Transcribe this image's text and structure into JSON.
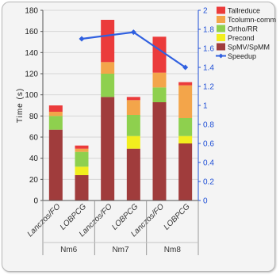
{
  "chart_data": {
    "type": "bar",
    "stacked": true,
    "groups": [
      "Nm6",
      "Nm7",
      "Nm8"
    ],
    "categories": [
      "Lanczos/FO",
      "LOBPCG",
      "Lanczos/FO",
      "LOBPCG",
      "Lanczos/FO",
      "LOBPCG"
    ],
    "series": [
      {
        "name": "SpMV/SpMM",
        "color": "#a03c3c",
        "values": [
          67,
          24,
          98,
          49,
          93,
          54
        ]
      },
      {
        "name": "Precond",
        "color": "#f2ee1e",
        "values": [
          0,
          8,
          0,
          12,
          0,
          7
        ]
      },
      {
        "name": "Ortho/RR",
        "color": "#8ed04e",
        "values": [
          13,
          14,
          22,
          20,
          14,
          17
        ]
      },
      {
        "name": "Tcolumn-comm",
        "color": "#f3a54a",
        "values": [
          4,
          3,
          11,
          14,
          14,
          31
        ]
      },
      {
        "name": "Tallreduce",
        "color": "#eb3b3b",
        "values": [
          6,
          3,
          40,
          3,
          34,
          3
        ]
      }
    ],
    "line": {
      "name": "Speedup",
      "color": "#3060e0",
      "x_index": [
        1,
        3,
        5
      ],
      "values": [
        1.7,
        1.77,
        1.4
      ]
    },
    "ylabel": "Time (s)",
    "ylim": [
      0,
      180
    ],
    "yticks": [
      0,
      20,
      40,
      60,
      80,
      100,
      120,
      140,
      160,
      180
    ],
    "y2lim": [
      0,
      2
    ],
    "y2ticks": [
      "0",
      "0.2",
      "0.4",
      "0.6",
      "0.8",
      "1",
      "1.2",
      "1.4",
      "1.6",
      "1.8",
      "2"
    ],
    "legend": "right",
    "legend_entries": [
      "Tallreduce",
      "Tcolumn-comm",
      "Ortho/RR",
      "Precond",
      "SpMV/SpMM",
      "Speedup"
    ]
  }
}
